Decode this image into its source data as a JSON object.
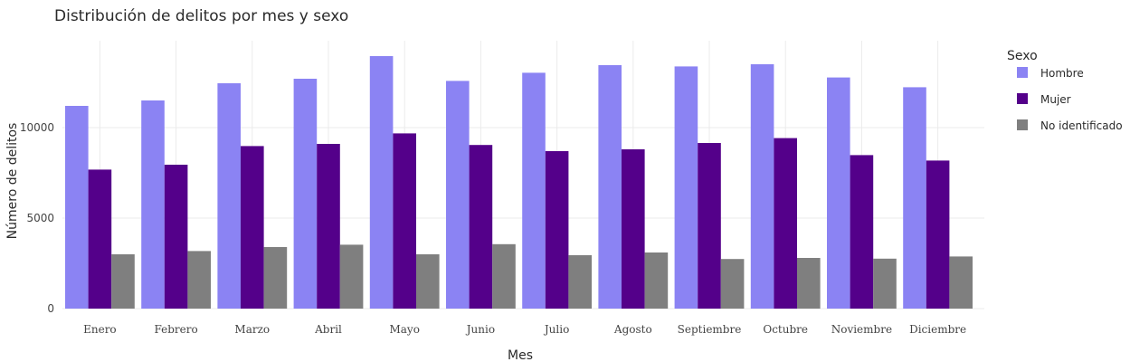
{
  "chart_data": {
    "type": "bar",
    "title": "Distribución de delitos por mes y sexo",
    "xlabel": "Mes",
    "ylabel": "Número de delitos",
    "legend_title": "Sexo",
    "legend_position": "right",
    "grid": true,
    "ylim": [
      0,
      14800
    ],
    "yticks": [
      0,
      5000,
      10000
    ],
    "ytick_labels": [
      "0",
      "5000",
      "10000"
    ],
    "categories": [
      "Enero",
      "Febrero",
      "Marzo",
      "Abril",
      "Mayo",
      "Junio",
      "Julio",
      "Agosto",
      "Septiembre",
      "Octubre",
      "Noviembre",
      "Diciembre"
    ],
    "series": [
      {
        "name": "Hombre",
        "color": "#8b83f3",
        "values": [
          11200,
          11500,
          12450,
          12700,
          13950,
          12580,
          13030,
          13450,
          13380,
          13500,
          12770,
          12230
        ]
      },
      {
        "name": "Mujer",
        "color": "#54008a",
        "values": [
          7680,
          7950,
          8980,
          9100,
          9680,
          9040,
          8700,
          8800,
          9150,
          9420,
          8480,
          8180
        ]
      },
      {
        "name": "No identificado",
        "color": "#7f7f7f",
        "values": [
          3000,
          3180,
          3400,
          3530,
          3000,
          3560,
          2950,
          3100,
          2740,
          2800,
          2760,
          2880
        ]
      }
    ]
  }
}
